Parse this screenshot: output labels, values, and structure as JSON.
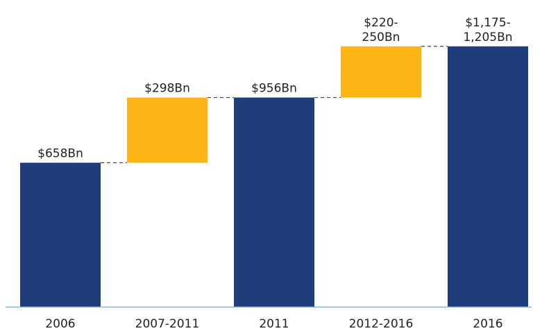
{
  "chart_data": {
    "type": "bar",
    "subtype": "waterfall",
    "title": "",
    "xlabel": "",
    "ylabel": "",
    "ylim": [
      0,
      1370
    ],
    "grid": false,
    "legend": "none",
    "categories": [
      "2006",
      "2007-2011",
      "2011",
      "2012-2016",
      "2016"
    ],
    "bars": [
      {
        "category": "2006",
        "kind": "total",
        "start": 0,
        "end": 658,
        "label": [
          "$658Bn"
        ]
      },
      {
        "category": "2007-2011",
        "kind": "increase",
        "start": 658,
        "end": 956,
        "label": [
          "$298Bn"
        ]
      },
      {
        "category": "2011",
        "kind": "total",
        "start": 0,
        "end": 956,
        "label": [
          "$956Bn"
        ]
      },
      {
        "category": "2012-2016",
        "kind": "increase",
        "start": 956,
        "end": 1190,
        "label": [
          "$220-",
          "250Bn"
        ]
      },
      {
        "category": "2016",
        "kind": "total",
        "start": 0,
        "end": 1190,
        "label": [
          "$1,175-",
          "1,205Bn"
        ]
      }
    ],
    "colors": {
      "total": "#1f3d7a",
      "increase": "#fdb515",
      "connector": "#444444",
      "axis": "#8fb3c9"
    }
  }
}
